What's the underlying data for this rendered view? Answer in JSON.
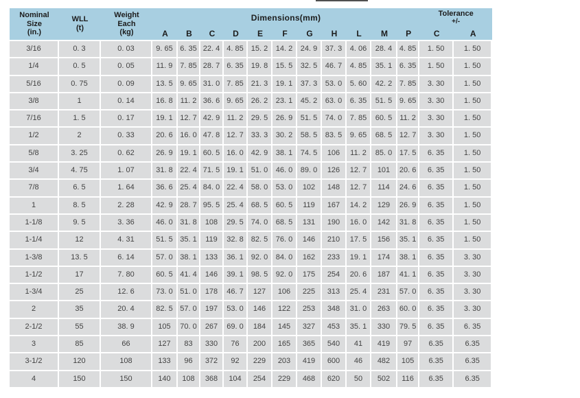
{
  "theme": {
    "header-bg": "#a8cfe1",
    "row-bg": "#dbdcdd",
    "grid": "#ffffff",
    "text": "#424242",
    "header-text": "#1c1c1c",
    "artifact": "#4f4f4f"
  },
  "table": {
    "headers": {
      "nominal": [
        "Nominal",
        "Size",
        "(in.)"
      ],
      "wll": [
        "WLL",
        "(t)"
      ],
      "weight": [
        "Weight",
        "Each",
        "(kg)"
      ],
      "dimensions": "Dimensions(mm)",
      "tolerance": [
        "Tolerance",
        "+/-"
      ],
      "dim_letters": [
        "A",
        "B",
        "C",
        "D",
        "E",
        "F",
        "G",
        "H",
        "L",
        "M",
        "P"
      ],
      "tol_letters": [
        "C",
        "A"
      ]
    },
    "rows": [
      [
        "3/16",
        "0. 3",
        "0. 03",
        "9. 65",
        "6. 35",
        "22. 4",
        "4. 85",
        "15. 2",
        "14. 2",
        "24. 9",
        "37. 3",
        "4. 06",
        "28. 4",
        "4. 85",
        "1. 50",
        "1. 50"
      ],
      [
        "1/4",
        "0. 5",
        "0. 05",
        "11. 9",
        "7. 85",
        "28. 7",
        "6. 35",
        "19. 8",
        "15. 5",
        "32. 5",
        "46. 7",
        "4. 85",
        "35. 1",
        "6. 35",
        "1. 50",
        "1. 50"
      ],
      [
        "5/16",
        "0. 75",
        "0. 09",
        "13. 5",
        "9. 65",
        "31. 0",
        "7. 85",
        "21. 3",
        "19. 1",
        "37. 3",
        "53. 0",
        "5. 60",
        "42. 2",
        "7. 85",
        "3. 30",
        "1. 50"
      ],
      [
        "3/8",
        "1",
        "0. 14",
        "16. 8",
        "11. 2",
        "36. 6",
        "9. 65",
        "26. 2",
        "23. 1",
        "45. 2",
        "63. 0",
        "6. 35",
        "51. 5",
        "9. 65",
        "3. 30",
        "1. 50"
      ],
      [
        "7/16",
        "1. 5",
        "0. 17",
        "19. 1",
        "12. 7",
        "42. 9",
        "11. 2",
        "29. 5",
        "26. 9",
        "51. 5",
        "74. 0",
        "7. 85",
        "60. 5",
        "11. 2",
        "3. 30",
        "1. 50"
      ],
      [
        "1/2",
        "2",
        "0. 33",
        "20. 6",
        "16. 0",
        "47. 8",
        "12. 7",
        "33. 3",
        "30. 2",
        "58. 5",
        "83. 5",
        "9. 65",
        "68. 5",
        "12. 7",
        "3. 30",
        "1. 50"
      ],
      [
        "5/8",
        "3. 25",
        "0. 62",
        "26. 9",
        "19. 1",
        "60. 5",
        "16. 0",
        "42. 9",
        "38. 1",
        "74. 5",
        "106",
        "11. 2",
        "85. 0",
        "17. 5",
        "6. 35",
        "1. 50"
      ],
      [
        "3/4",
        "4. 75",
        "1. 07",
        "31. 8",
        "22. 4",
        "71. 5",
        "19. 1",
        "51. 0",
        "46. 0",
        "89. 0",
        "126",
        "12. 7",
        "101",
        "20. 6",
        "6. 35",
        "1. 50"
      ],
      [
        "7/8",
        "6. 5",
        "1. 64",
        "36. 6",
        "25. 4",
        "84. 0",
        "22. 4",
        "58. 0",
        "53. 0",
        "102",
        "148",
        "12. 7",
        "114",
        "24. 6",
        "6. 35",
        "1. 50"
      ],
      [
        "1",
        "8. 5",
        "2. 28",
        "42. 9",
        "28. 7",
        "95. 5",
        "25. 4",
        "68. 5",
        "60. 5",
        "119",
        "167",
        "14. 2",
        "129",
        "26. 9",
        "6. 35",
        "1. 50"
      ],
      [
        "1-1/8",
        "9. 5",
        "3. 36",
        "46. 0",
        "31. 8",
        "108",
        "29. 5",
        "74. 0",
        "68. 5",
        "131",
        "190",
        "16. 0",
        "142",
        "31. 8",
        "6. 35",
        "1. 50"
      ],
      [
        "1-1/4",
        "12",
        "4. 31",
        "51. 5",
        "35. 1",
        "119",
        "32. 8",
        "82. 5",
        "76. 0",
        "146",
        "210",
        "17. 5",
        "156",
        "35. 1",
        "6. 35",
        "1. 50"
      ],
      [
        "1-3/8",
        "13. 5",
        "6. 14",
        "57. 0",
        "38. 1",
        "133",
        "36. 1",
        "92. 0",
        "84. 0",
        "162",
        "233",
        "19. 1",
        "174",
        "38. 1",
        "6. 35",
        "3. 30"
      ],
      [
        "1-1/2",
        "17",
        "7. 80",
        "60. 5",
        "41. 4",
        "146",
        "39. 1",
        "98. 5",
        "92. 0",
        "175",
        "254",
        "20. 6",
        "187",
        "41. 1",
        "6. 35",
        "3. 30"
      ],
      [
        "1-3/4",
        "25",
        "12. 6",
        "73. 0",
        "51. 0",
        "178",
        "46. 7",
        "127",
        "106",
        "225",
        "313",
        "25. 4",
        "231",
        "57. 0",
        "6. 35",
        "3. 30"
      ],
      [
        "2",
        "35",
        "20. 4",
        "82. 5",
        "57. 0",
        "197",
        "53. 0",
        "146",
        "122",
        "253",
        "348",
        "31. 0",
        "263",
        "60. 0",
        "6. 35",
        "3. 30"
      ],
      [
        "2-1/2",
        "55",
        "38. 9",
        "105",
        "70. 0",
        "267",
        "69. 0",
        "184",
        "145",
        "327",
        "453",
        "35. 1",
        "330",
        "79. 5",
        "6. 35",
        "6. 35"
      ],
      [
        "3",
        "85",
        "66",
        "127",
        "83",
        "330",
        "76",
        "200",
        "165",
        "365",
        "540",
        "41",
        "419",
        "97",
        "6.35",
        "6.35"
      ],
      [
        "3-1/2",
        "120",
        "108",
        "133",
        "96",
        "372",
        "92",
        "229",
        "203",
        "419",
        "600",
        "46",
        "482",
        "105",
        "6.35",
        "6.35"
      ],
      [
        "4",
        "150",
        "150",
        "140",
        "108",
        "368",
        "104",
        "254",
        "229",
        "468",
        "620",
        "50",
        "502",
        "116",
        "6.35",
        "6.35"
      ]
    ]
  }
}
